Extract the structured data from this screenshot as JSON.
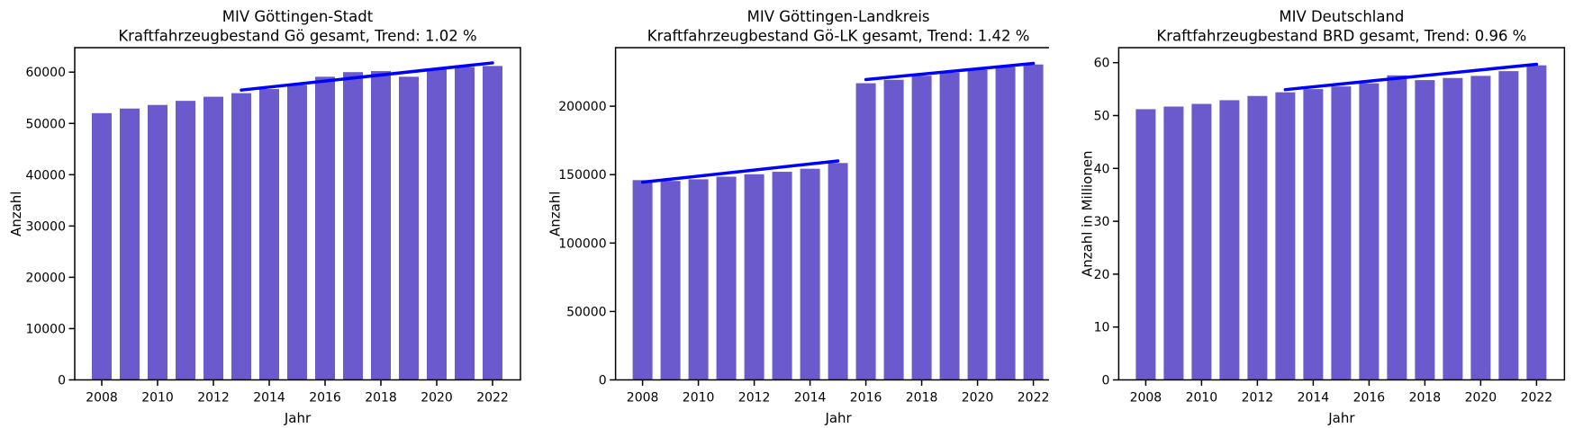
{
  "figure": {
    "background_color": "#ffffff",
    "bar_color": "#6a5acd",
    "trend_line_color": "#0000ff",
    "axis_color": "#000000",
    "n_subplots": 3
  },
  "chart_data": [
    {
      "type": "bar",
      "title_line1": "MIV Göttingen-Stadt",
      "title_line2": "Kraftfahrzeugbestand Gö gesamt, Trend:  1.02 %",
      "trend_percent": "1.02 %",
      "xlabel": "Jahr",
      "ylabel": "Anzahl",
      "categories": [
        2008,
        2009,
        2010,
        2011,
        2012,
        2013,
        2014,
        2015,
        2016,
        2017,
        2018,
        2019,
        2020,
        2021,
        2022
      ],
      "values": [
        52000,
        52900,
        53600,
        54400,
        55200,
        55900,
        56700,
        57500,
        59100,
        60000,
        60200,
        59100,
        60600,
        61000,
        61200
      ],
      "ylim": [
        0,
        64770
      ],
      "yticks": [
        0,
        10000,
        20000,
        30000,
        40000,
        50000,
        60000
      ],
      "xticks": [
        2008,
        2010,
        2012,
        2014,
        2016,
        2018,
        2020,
        2022
      ],
      "grid": false,
      "legend": "none",
      "trend_lines": [
        {
          "x_start": 2013,
          "value_start": 56500,
          "x_end": 2022,
          "value_end": 61800
        }
      ]
    },
    {
      "type": "bar",
      "title_line1": "MIV Göttingen-Landkreis",
      "title_line2": "Kraftfahrzeugbestand Gö-LK gesamt, Trend:  1.42 %",
      "trend_percent": "1.42 %",
      "xlabel": "Jahr",
      "ylabel": "Anzahl",
      "categories": [
        2008,
        2009,
        2010,
        2011,
        2012,
        2013,
        2014,
        2015,
        2016,
        2017,
        2018,
        2019,
        2020,
        2021,
        2022
      ],
      "values": [
        146000,
        145400,
        146600,
        148500,
        150300,
        152100,
        154300,
        158500,
        216800,
        219300,
        222300,
        224600,
        226700,
        228800,
        230500
      ],
      "ylim": [
        0,
        242800
      ],
      "yticks": [
        0,
        50000,
        100000,
        150000,
        200000
      ],
      "xticks": [
        2008,
        2010,
        2012,
        2014,
        2016,
        2018,
        2020,
        2022
      ],
      "grid": false,
      "legend": "none",
      "trend_lines": [
        {
          "x_start": 2008,
          "value_start": 144500,
          "x_end": 2015,
          "value_end": 160000
        },
        {
          "x_start": 2016,
          "value_start": 219500,
          "x_end": 2022,
          "value_end": 231300
        }
      ]
    },
    {
      "type": "bar",
      "title_line1": "MIV Deutschland",
      "title_line2": "Kraftfahrzeugbestand BRD gesamt, Trend:  0.96 %",
      "trend_percent": "0.96 %",
      "xlabel": "Jahr",
      "ylabel": "Anzahl  in Millionen",
      "categories": [
        2008,
        2009,
        2010,
        2011,
        2012,
        2013,
        2014,
        2015,
        2016,
        2017,
        2018,
        2019,
        2020,
        2021,
        2022
      ],
      "values": [
        51.2,
        51.7,
        52.2,
        52.9,
        53.7,
        54.4,
        55.0,
        55.5,
        56.1,
        57.6,
        56.7,
        57.1,
        57.5,
        58.4,
        59.5
      ],
      "ylim": [
        0,
        62.84
      ],
      "yticks": [
        0,
        10,
        20,
        30,
        40,
        50,
        60
      ],
      "xticks": [
        2008,
        2010,
        2012,
        2014,
        2016,
        2018,
        2020,
        2022
      ],
      "grid": false,
      "legend": "none",
      "trend_lines": [
        {
          "x_start": 2013,
          "value_start": 54.9,
          "x_end": 2022,
          "value_end": 59.7
        }
      ]
    }
  ]
}
